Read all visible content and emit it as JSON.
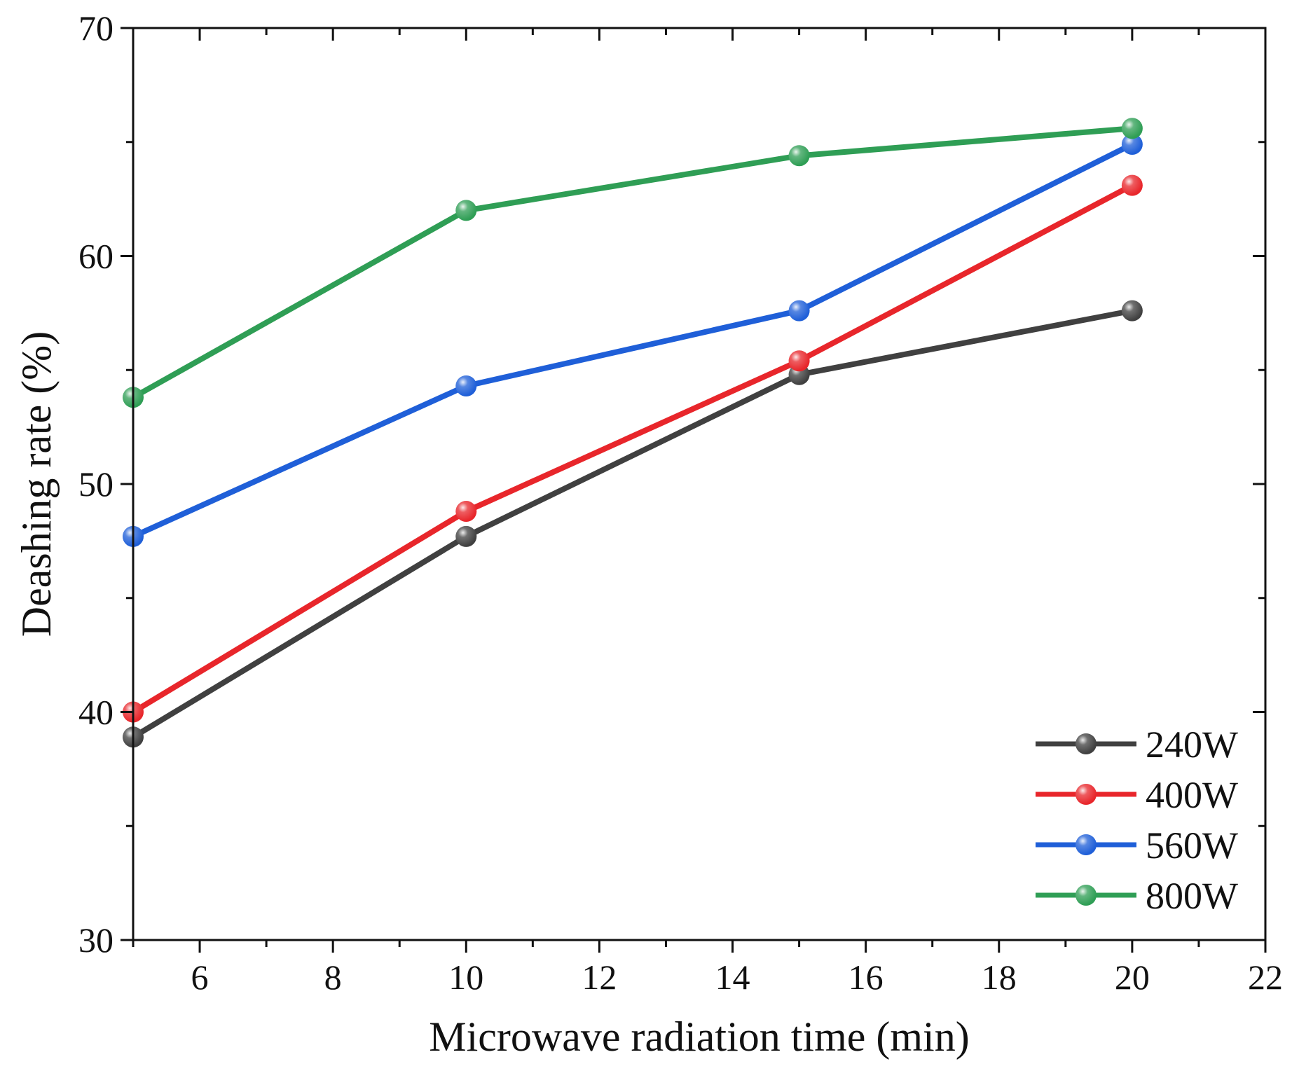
{
  "chart_data": {
    "type": "line",
    "title": "",
    "xlabel": "Microwave radiation time (min)",
    "ylabel": "Deashing rate (%)",
    "xlim": [
      5,
      22
    ],
    "ylim": [
      30,
      70
    ],
    "x_ticks": [
      6,
      8,
      10,
      12,
      14,
      16,
      18,
      20,
      22
    ],
    "y_ticks": [
      30,
      40,
      50,
      60,
      70
    ],
    "x": [
      5,
      10,
      15,
      20
    ],
    "series": [
      {
        "name": "240W",
        "color": "#404040",
        "values": [
          38.9,
          47.7,
          54.8,
          57.6
        ]
      },
      {
        "name": "400W",
        "color": "#e8262b",
        "values": [
          40.0,
          48.8,
          55.4,
          63.1
        ]
      },
      {
        "name": "560W",
        "color": "#1f5fd8",
        "values": [
          47.7,
          54.3,
          57.6,
          64.9
        ]
      },
      {
        "name": "800W",
        "color": "#2f9e55",
        "values": [
          53.8,
          62.0,
          64.4,
          65.6
        ]
      }
    ],
    "legend_position": "bottom-right",
    "grid": false
  }
}
